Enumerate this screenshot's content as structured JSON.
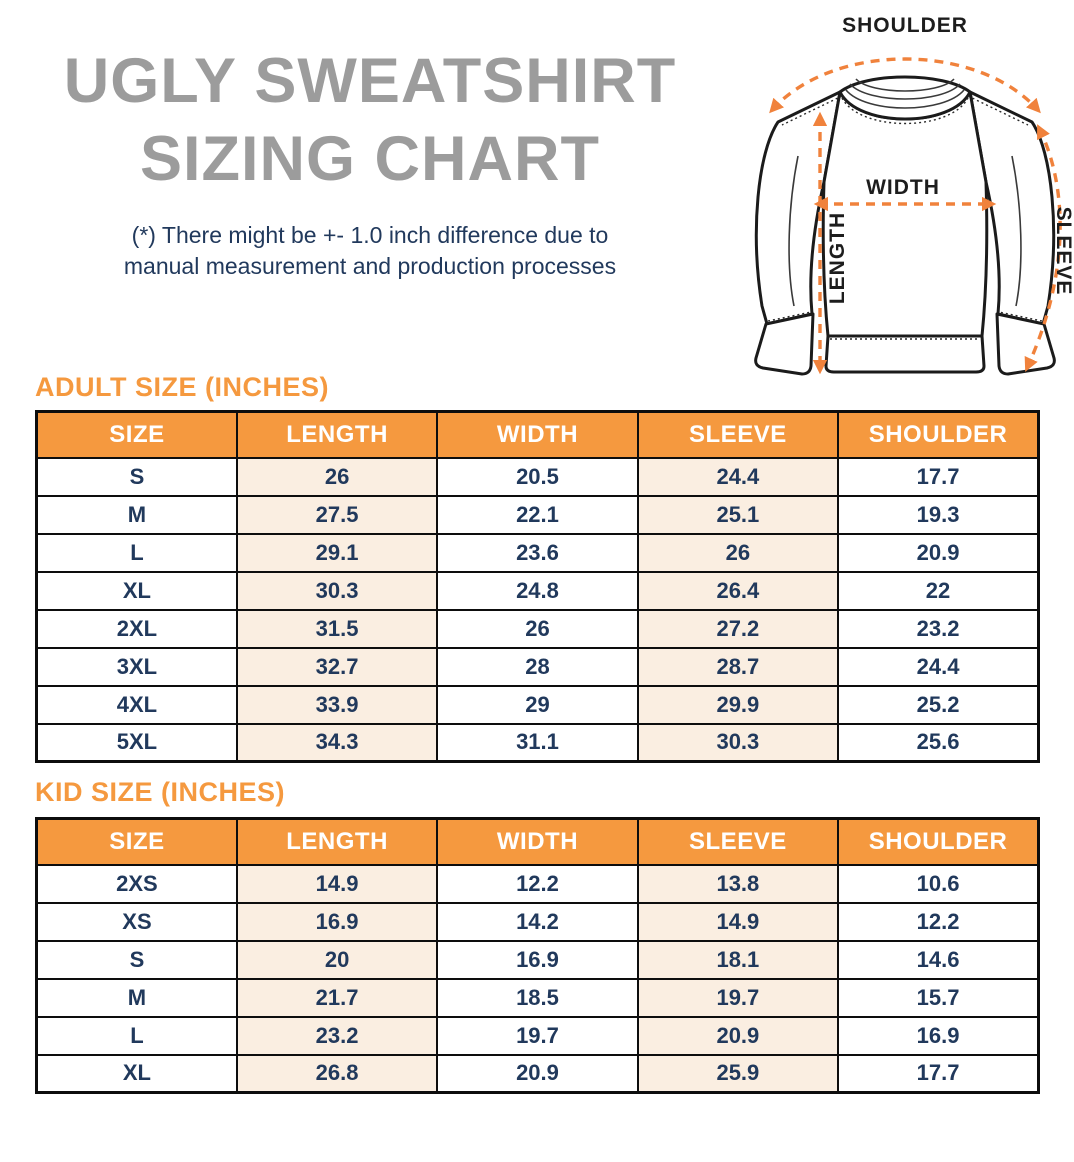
{
  "title": {
    "line1": "UGLY SWEATSHIRT",
    "line2": "SIZING CHART"
  },
  "disclaimer": {
    "line1": "(*) There might be +- 1.0 inch difference due to",
    "line2": "manual measurement and production processes"
  },
  "diagram": {
    "labels": {
      "shoulder": "SHOULDER",
      "width": "WIDTH",
      "length": "LENGTH",
      "sleeve": "SLEEVE"
    }
  },
  "adult_table": {
    "heading": "ADULT SIZE (INCHES)",
    "columns": [
      "SIZE",
      "LENGTH",
      "WIDTH",
      "SLEEVE",
      "SHOULDER"
    ],
    "rows": [
      [
        "S",
        "26",
        "20.5",
        "24.4",
        "17.7"
      ],
      [
        "M",
        "27.5",
        "22.1",
        "25.1",
        "19.3"
      ],
      [
        "L",
        "29.1",
        "23.6",
        "26",
        "20.9"
      ],
      [
        "XL",
        "30.3",
        "24.8",
        "26.4",
        "22"
      ],
      [
        "2XL",
        "31.5",
        "26",
        "27.2",
        "23.2"
      ],
      [
        "3XL",
        "32.7",
        "28",
        "28.7",
        "24.4"
      ],
      [
        "4XL",
        "33.9",
        "29",
        "29.9",
        "25.2"
      ],
      [
        "5XL",
        "34.3",
        "31.1",
        "30.3",
        "25.6"
      ]
    ]
  },
  "kid_table": {
    "heading": "KID SIZE (INCHES)",
    "columns": [
      "SIZE",
      "LENGTH",
      "WIDTH",
      "SLEEVE",
      "SHOULDER"
    ],
    "rows": [
      [
        "2XS",
        "14.9",
        "12.2",
        "13.8",
        "10.6"
      ],
      [
        "XS",
        "16.9",
        "14.2",
        "14.9",
        "12.2"
      ],
      [
        "S",
        "20",
        "16.9",
        "18.1",
        "14.6"
      ],
      [
        "M",
        "21.7",
        "18.5",
        "19.7",
        "15.7"
      ],
      [
        "L",
        "23.2",
        "19.7",
        "20.9",
        "16.9"
      ],
      [
        "XL",
        "26.8",
        "20.9",
        "25.9",
        "17.7"
      ]
    ]
  },
  "colors": {
    "accent_orange": "#f5993f",
    "arrow_orange": "#f0823c",
    "peach_column": "#faeee1",
    "navy_text": "#21395c",
    "title_gray": "#9c9c9c"
  }
}
